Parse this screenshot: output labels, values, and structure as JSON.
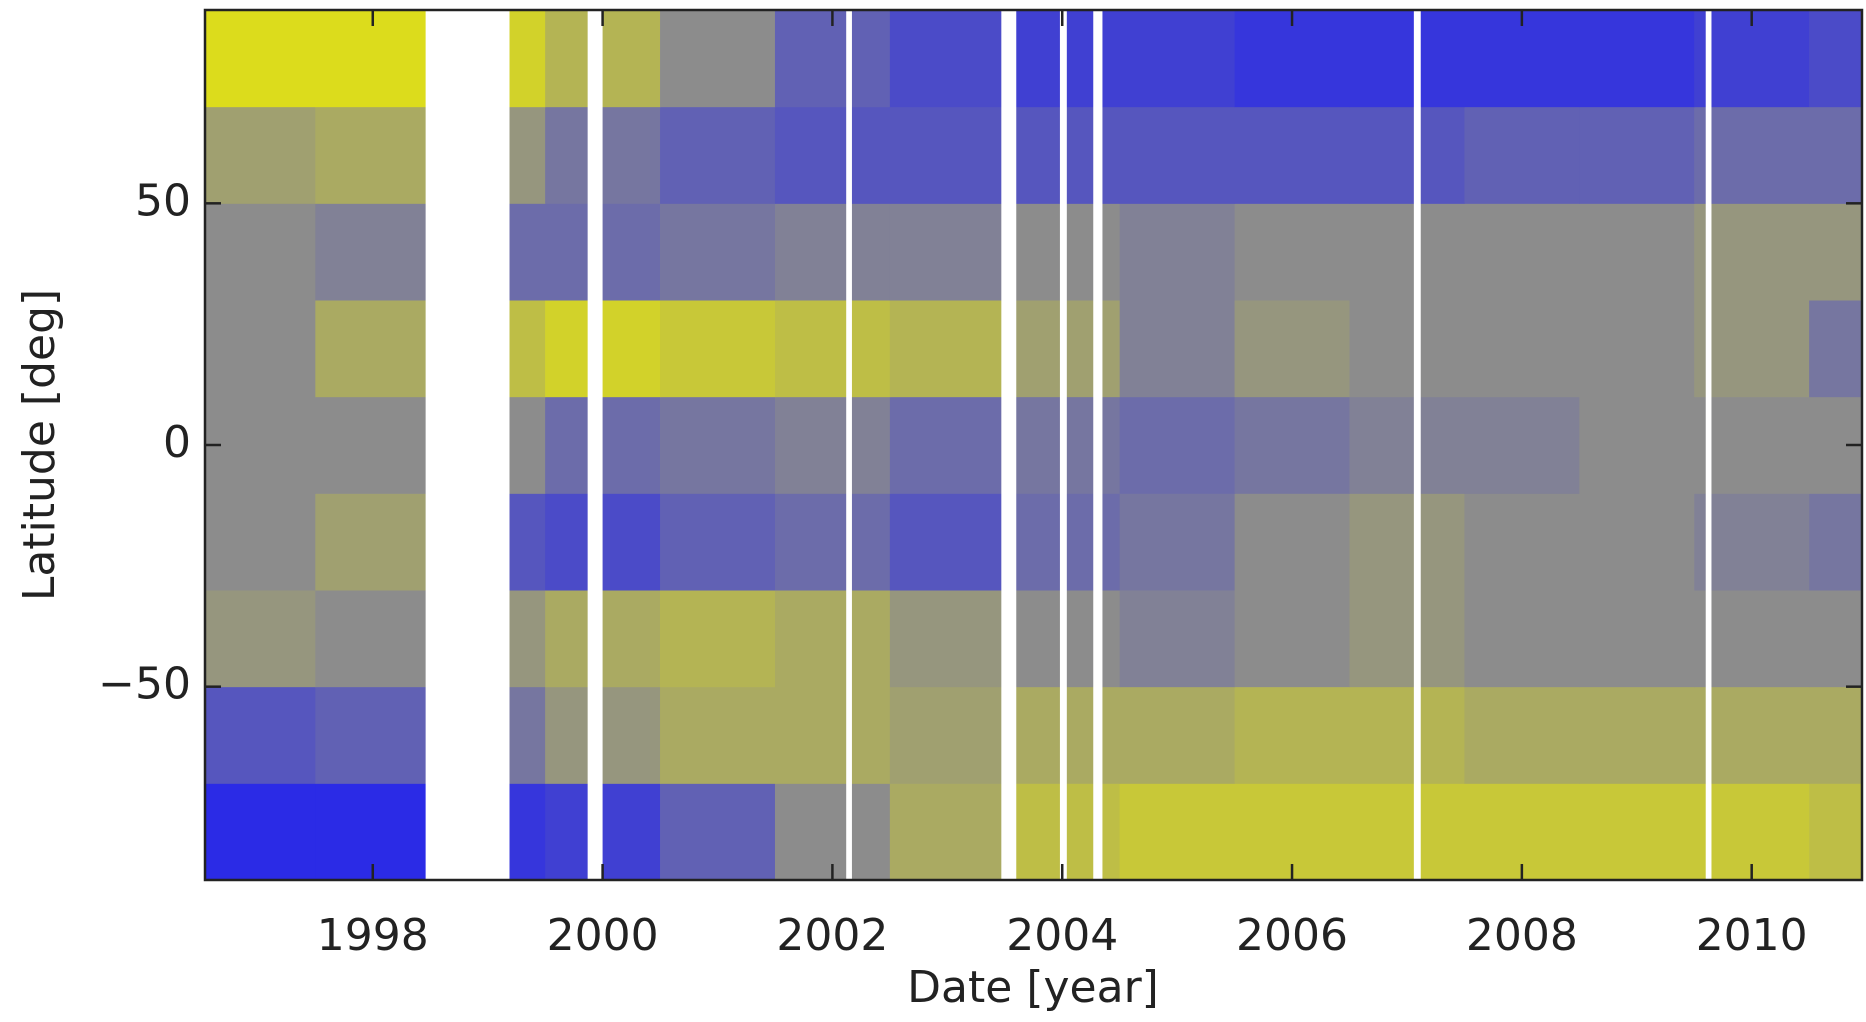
{
  "chart_data": {
    "type": "heatmap",
    "x_label": "Date [year]",
    "y_label": "Latitude [deg]",
    "xlim": [
      1996.54,
      2010.96
    ],
    "ylim": [
      -90,
      90
    ],
    "xticks": [
      1998,
      2000,
      2002,
      2004,
      2006,
      2008,
      2010
    ],
    "yticks": [
      {
        "value": -50,
        "label": "−50"
      },
      0,
      50
    ],
    "x_bins": [
      1996.54,
      1997.5,
      1998.5,
      1999.5,
      2000.5,
      2001.5,
      2002.5,
      2003.5,
      2004.5,
      2005.5,
      2006.5,
      2007.5,
      2008.5,
      2009.5,
      2010.5,
      2010.96
    ],
    "y_bins": [
      -90,
      -70,
      -50,
      -30,
      -10,
      10,
      30,
      50,
      70,
      90
    ],
    "z": [
      [
        -0.9,
        -0.9,
        -0.8,
        -0.7,
        -0.4,
        0.0,
        0.3,
        0.5,
        0.6,
        0.6,
        0.6,
        0.6,
        0.6,
        0.6,
        0.5
      ],
      [
        -0.5,
        -0.4,
        -0.2,
        0.1,
        0.3,
        0.3,
        0.2,
        0.3,
        0.3,
        0.4,
        0.4,
        0.3,
        0.3,
        0.3,
        0.3
      ],
      [
        0.1,
        0.0,
        0.1,
        0.3,
        0.4,
        0.3,
        0.1,
        0.0,
        -0.1,
        0.0,
        0.1,
        0.0,
        0.0,
        0.0,
        0.0
      ],
      [
        0.0,
        0.2,
        -0.5,
        -0.6,
        -0.4,
        -0.3,
        -0.5,
        -0.3,
        -0.2,
        0.0,
        0.1,
        0.0,
        0.0,
        -0.1,
        -0.2
      ],
      [
        0.0,
        0.0,
        0.0,
        -0.3,
        -0.2,
        -0.1,
        -0.3,
        -0.2,
        -0.3,
        -0.2,
        -0.1,
        -0.1,
        0.0,
        0.0,
        0.0
      ],
      [
        0.0,
        0.3,
        0.5,
        0.7,
        0.6,
        0.5,
        0.4,
        0.2,
        -0.1,
        0.1,
        0.0,
        0.0,
        0.0,
        0.1,
        -0.2
      ],
      [
        0.0,
        -0.1,
        -0.3,
        -0.3,
        -0.2,
        -0.1,
        -0.1,
        0.0,
        -0.1,
        0.0,
        0.0,
        0.0,
        0.0,
        0.1,
        0.1
      ],
      [
        0.2,
        0.3,
        0.1,
        -0.2,
        -0.4,
        -0.5,
        -0.5,
        -0.5,
        -0.5,
        -0.5,
        -0.5,
        -0.4,
        -0.4,
        -0.3,
        -0.3
      ],
      [
        0.8,
        0.8,
        0.7,
        0.4,
        0.0,
        -0.4,
        -0.6,
        -0.7,
        -0.7,
        -0.8,
        -0.8,
        -0.8,
        -0.8,
        -0.7,
        -0.6
      ]
    ],
    "colors": {
      "negative": "#2020f0",
      "zero": "#8c8c8c",
      "positive": "#f0f000"
    },
    "data_gaps": [
      [
        1998.46,
        1999.19
      ],
      [
        1999.87,
        2000.0
      ],
      [
        2002.12,
        2002.17
      ],
      [
        2003.47,
        2003.6
      ],
      [
        2003.98,
        2004.04
      ],
      [
        2004.27,
        2004.35
      ],
      [
        2007.06,
        2007.12
      ],
      [
        2009.6,
        2009.65
      ]
    ]
  }
}
